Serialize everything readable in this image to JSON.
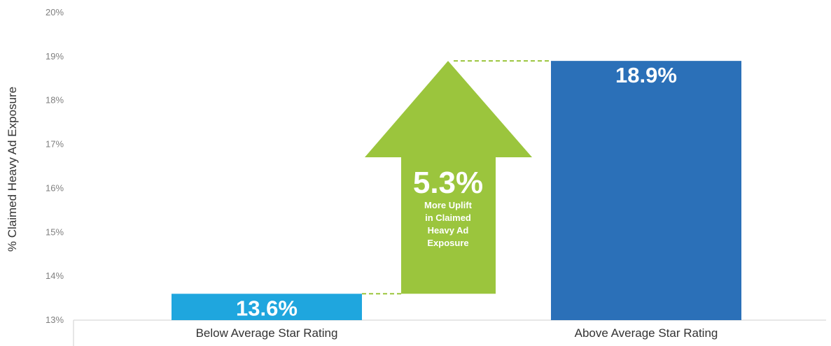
{
  "chart_data": {
    "type": "bar",
    "categories": [
      "Below Average Star Rating",
      "Above Average Star Rating"
    ],
    "values": [
      13.6,
      18.9
    ],
    "value_labels": [
      "13.6%",
      "18.9%"
    ],
    "ylabel": "% Claimed Heavy Ad Exposure",
    "xlabel": "",
    "ylim": [
      13,
      20
    ],
    "ytick_values": [
      13,
      14,
      15,
      16,
      17,
      18,
      19,
      20
    ],
    "ytick_labels": [
      "13%",
      "14%",
      "15%",
      "16%",
      "17%",
      "18%",
      "19%",
      "20%"
    ],
    "grid": false,
    "bar_colors": [
      "#1fa6de",
      "#2b70b8"
    ],
    "uplift": {
      "value_label": "5.3%",
      "text_lines": [
        "More Uplift",
        "in Claimed",
        "Heavy Ad",
        "Exposure"
      ],
      "color": "#9bc53d"
    }
  }
}
